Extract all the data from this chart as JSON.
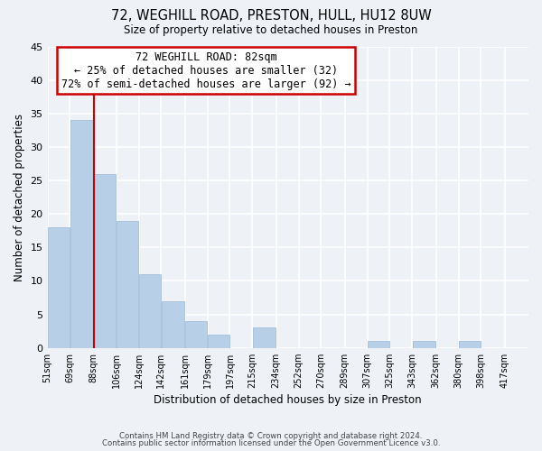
{
  "title": "72, WEGHILL ROAD, PRESTON, HULL, HU12 8UW",
  "subtitle": "Size of property relative to detached houses in Preston",
  "xlabel": "Distribution of detached houses by size in Preston",
  "ylabel": "Number of detached properties",
  "footer_line1": "Contains HM Land Registry data © Crown copyright and database right 2024.",
  "footer_line2": "Contains public sector information licensed under the Open Government Licence v3.0.",
  "bins": [
    "51sqm",
    "69sqm",
    "88sqm",
    "106sqm",
    "124sqm",
    "142sqm",
    "161sqm",
    "179sqm",
    "197sqm",
    "215sqm",
    "234sqm",
    "252sqm",
    "270sqm",
    "289sqm",
    "307sqm",
    "325sqm",
    "343sqm",
    "362sqm",
    "380sqm",
    "398sqm",
    "417sqm"
  ],
  "values": [
    18,
    34,
    26,
    19,
    11,
    7,
    4,
    2,
    0,
    3,
    0,
    0,
    0,
    0,
    1,
    0,
    1,
    0,
    1,
    0
  ],
  "bar_color": "#b8cfe8",
  "bar_edgecolor": "#9ab8d8",
  "property_line_label": "72 WEGHILL ROAD: 82sqm",
  "annotation_line1": "← 25% of detached houses are smaller (32)",
  "annotation_line2": "72% of semi-detached houses are larger (92) →",
  "annotation_box_edgecolor": "#cc0000",
  "vline_color": "#cc0000",
  "vline_x_bin_index": 2,
  "ylim": [
    0,
    45
  ],
  "yticks": [
    0,
    5,
    10,
    15,
    20,
    25,
    30,
    35,
    40,
    45
  ],
  "background_color": "#eef2f7",
  "grid_color": "white",
  "bin_starts": [
    51,
    69,
    88,
    106,
    124,
    142,
    161,
    179,
    197,
    215,
    234,
    252,
    270,
    289,
    307,
    325,
    343,
    362,
    380,
    398,
    417
  ]
}
